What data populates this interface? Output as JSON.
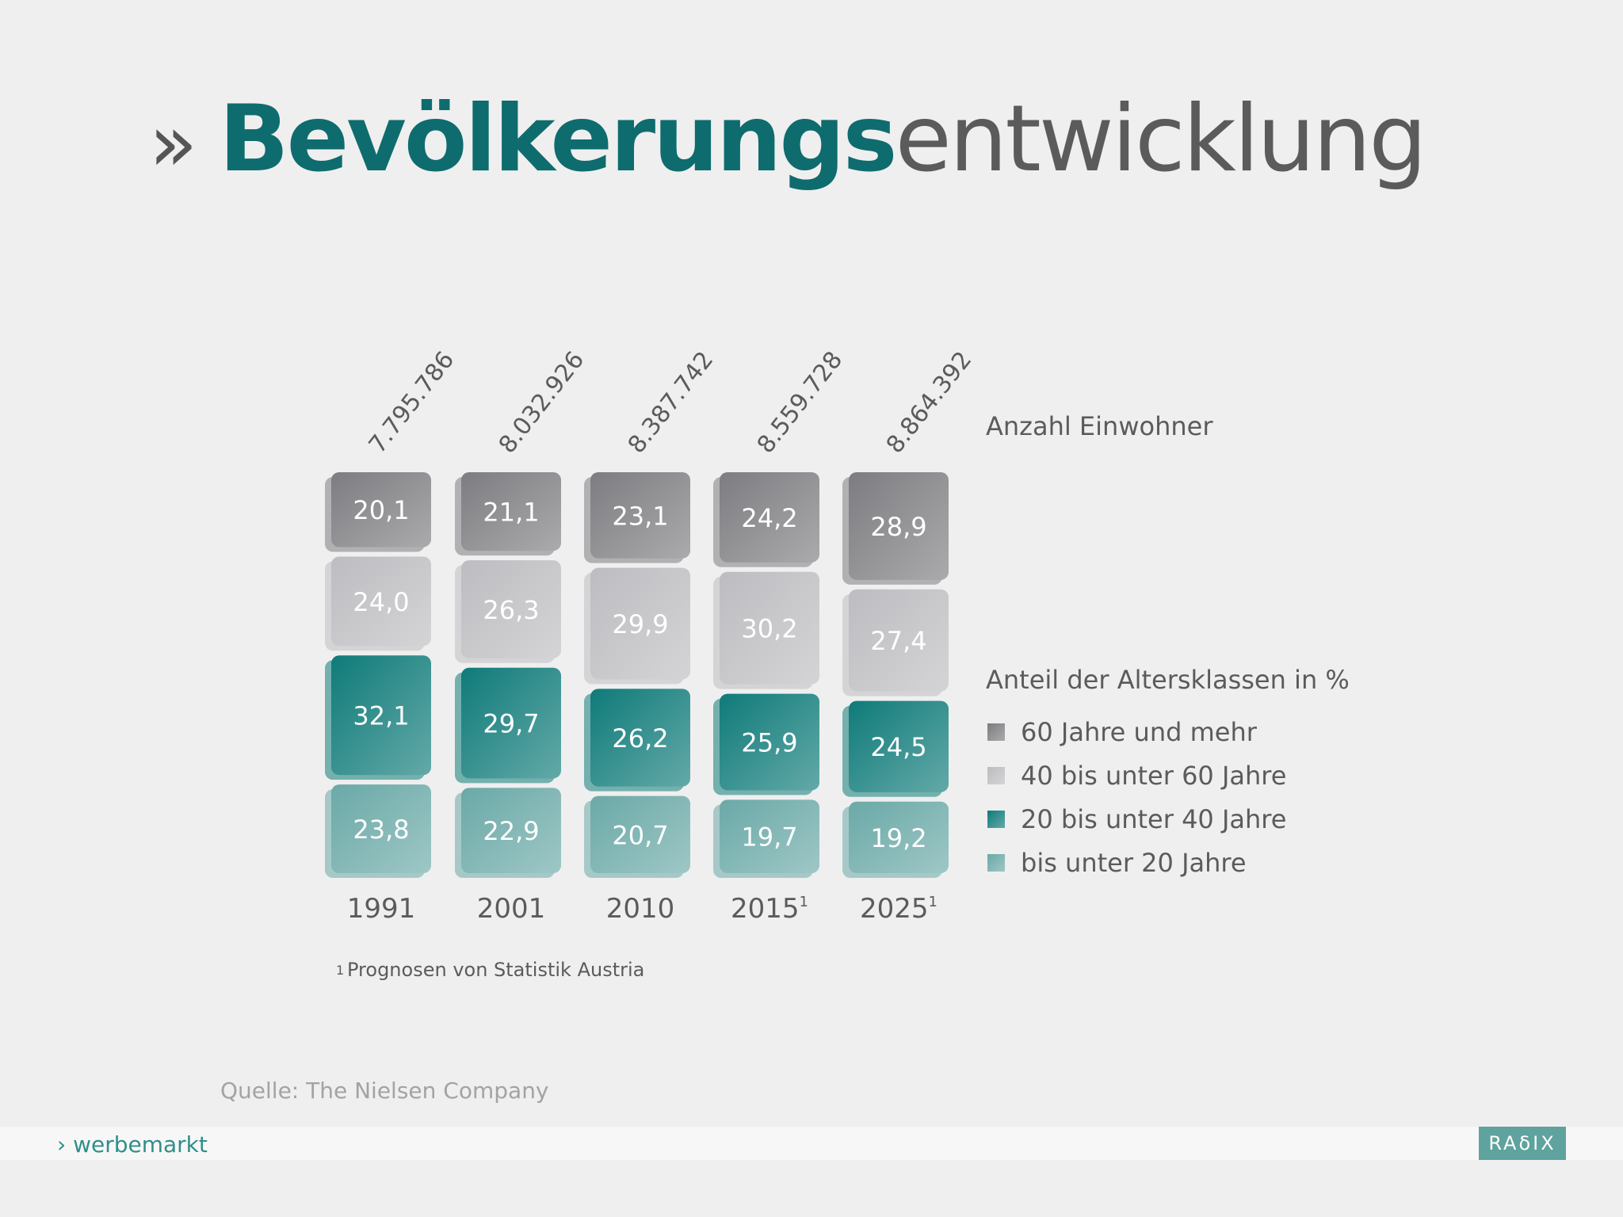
{
  "title": {
    "chevron": "»",
    "bold": "Bevölkerungs",
    "light": "entwicklung"
  },
  "chart_data": {
    "type": "bar",
    "stacked": true,
    "categories": [
      "1991",
      "2001",
      "2010",
      "2015",
      "2025"
    ],
    "category_footnote_marks": [
      "",
      "",
      "",
      "1",
      "1"
    ],
    "totals": [
      "7.795.786",
      "8.032.926",
      "8.387.742",
      "8.559.728",
      "8.864.392"
    ],
    "totals_label": "Anzahl Einwohner",
    "legend_title": "Anteil der Altersklassen in %",
    "legend_position": "right",
    "series": [
      {
        "name": "60 Jahre und mehr",
        "color": "#7d7c80",
        "values": [
          20.1,
          21.1,
          23.1,
          24.2,
          28.9
        ],
        "labels": [
          "20,1",
          "21,1",
          "23,1",
          "24,2",
          "28,9"
        ]
      },
      {
        "name": "40 bis unter 60 Jahre",
        "color": "#bdbdc1",
        "values": [
          24.0,
          26.3,
          29.9,
          30.2,
          27.4
        ],
        "labels": [
          "24,0",
          "26,3",
          "29,9",
          "30,2",
          "27,4"
        ]
      },
      {
        "name": "20 bis unter 40 Jahre",
        "color": "#0f7b79",
        "values": [
          32.1,
          29.7,
          26.2,
          25.9,
          24.5
        ],
        "labels": [
          "32,1",
          "29,7",
          "26,2",
          "25,9",
          "24,5"
        ]
      },
      {
        "name": "bis unter 20 Jahre",
        "color": "#6aa9a7",
        "values": [
          23.8,
          22.9,
          20.7,
          19.7,
          19.2
        ],
        "labels": [
          "23,8",
          "22,9",
          "20,7",
          "19,7",
          "19,2"
        ]
      }
    ],
    "footnote": {
      "mark": "1",
      "text": "Prognosen von Statistik Austria"
    },
    "grid": false
  },
  "source": "Quelle: The Nielsen Company",
  "footer": {
    "brand": "› werbemarkt",
    "logo_text": "RAδIX"
  }
}
